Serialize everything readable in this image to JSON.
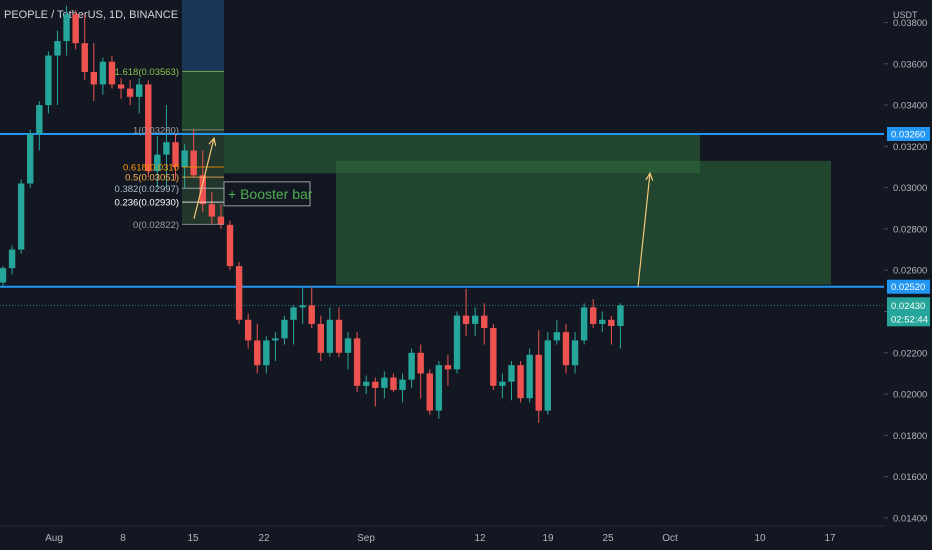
{
  "header": {
    "symbol_line": "PEOPLE / TetherUS, 1D, BINANCE"
  },
  "chart_data": {
    "type": "candlestick",
    "title": "PEOPLE / TetherUS, 1D, BINANCE",
    "currency_label": "USDT",
    "y_ticks": [
      "0.03800",
      "0.03600",
      "0.03400",
      "0.03200",
      "0.03000",
      "0.02800",
      "0.02600",
      "0.02400",
      "0.02200",
      "0.02000",
      "0.01800",
      "0.01600",
      "0.01400"
    ],
    "ylim": [
      0.0139,
      0.0388
    ],
    "x_ticks": [
      "Aug",
      "8",
      "15",
      "22",
      "Sep",
      "12",
      "19",
      "25",
      "Oct",
      "10",
      "17"
    ],
    "grid": false,
    "colors": {
      "background": "#131722",
      "up": "#26a69a",
      "down": "#ef5350",
      "level_line": "#2196f3",
      "zone": "#2e6b3a",
      "projection_arrow": "#f6c77a"
    },
    "horizontal_levels": [
      {
        "label": "0.03260",
        "value": 0.0326
      },
      {
        "label": "0.02520",
        "value": 0.0252
      }
    ],
    "current_price": {
      "value_label": "0.02430",
      "countdown": "02:52:44",
      "value": 0.0243
    },
    "fibonacci": [
      {
        "label": "1.618(0.03563)",
        "value": 0.03563
      },
      {
        "label": "1(0.03280)",
        "value": 0.0328
      },
      {
        "label": "0.618(0.0310",
        "value": 0.031
      },
      {
        "label": "0.5(0.03051)",
        "value": 0.03051
      },
      {
        "label": "0.382(0.02997)",
        "value": 0.02997
      },
      {
        "label": "0.236(0.02930)",
        "value": 0.0293
      },
      {
        "label": "0(0.02822)",
        "value": 0.02822
      }
    ],
    "annotation": "+ Booster bar",
    "candles": [
      {
        "o": 0.0254,
        "h": 0.0262,
        "l": 0.0252,
        "c": 0.0261
      },
      {
        "o": 0.0261,
        "h": 0.0272,
        "l": 0.0258,
        "c": 0.027
      },
      {
        "o": 0.027,
        "h": 0.0304,
        "l": 0.0268,
        "c": 0.0302
      },
      {
        "o": 0.0302,
        "h": 0.0328,
        "l": 0.03,
        "c": 0.0326
      },
      {
        "o": 0.0326,
        "h": 0.0342,
        "l": 0.0318,
        "c": 0.034
      },
      {
        "o": 0.034,
        "h": 0.0366,
        "l": 0.0336,
        "c": 0.0364
      },
      {
        "o": 0.0364,
        "h": 0.0376,
        "l": 0.034,
        "c": 0.0371
      },
      {
        "o": 0.0371,
        "h": 0.0388,
        "l": 0.0364,
        "c": 0.0384
      },
      {
        "o": 0.0384,
        "h": 0.0386,
        "l": 0.0367,
        "c": 0.037
      },
      {
        "o": 0.037,
        "h": 0.0384,
        "l": 0.0352,
        "c": 0.0356
      },
      {
        "o": 0.0356,
        "h": 0.037,
        "l": 0.0342,
        "c": 0.035
      },
      {
        "o": 0.035,
        "h": 0.0363,
        "l": 0.0345,
        "c": 0.0361
      },
      {
        "o": 0.0361,
        "h": 0.0364,
        "l": 0.0348,
        "c": 0.035
      },
      {
        "o": 0.035,
        "h": 0.0353,
        "l": 0.0343,
        "c": 0.0348
      },
      {
        "o": 0.0348,
        "h": 0.0352,
        "l": 0.034,
        "c": 0.0344
      },
      {
        "o": 0.0344,
        "h": 0.0353,
        "l": 0.0336,
        "c": 0.035
      },
      {
        "o": 0.035,
        "h": 0.0352,
        "l": 0.0305,
        "c": 0.0308
      },
      {
        "o": 0.0308,
        "h": 0.0325,
        "l": 0.03,
        "c": 0.0316
      },
      {
        "o": 0.0316,
        "h": 0.034,
        "l": 0.03,
        "c": 0.0322
      },
      {
        "o": 0.0322,
        "h": 0.0326,
        "l": 0.0304,
        "c": 0.031
      },
      {
        "o": 0.031,
        "h": 0.0321,
        "l": 0.03,
        "c": 0.0318
      },
      {
        "o": 0.0318,
        "h": 0.0328,
        "l": 0.0305,
        "c": 0.0306
      },
      {
        "o": 0.0306,
        "h": 0.0318,
        "l": 0.0288,
        "c": 0.0292
      },
      {
        "o": 0.0292,
        "h": 0.0298,
        "l": 0.0282,
        "c": 0.0286
      },
      {
        "o": 0.0286,
        "h": 0.0292,
        "l": 0.028,
        "c": 0.0282
      },
      {
        "o": 0.0282,
        "h": 0.0284,
        "l": 0.026,
        "c": 0.0262
      },
      {
        "o": 0.0262,
        "h": 0.0264,
        "l": 0.0234,
        "c": 0.0236
      },
      {
        "o": 0.0236,
        "h": 0.0239,
        "l": 0.0222,
        "c": 0.0226
      },
      {
        "o": 0.0226,
        "h": 0.0234,
        "l": 0.021,
        "c": 0.0214
      },
      {
        "o": 0.0214,
        "h": 0.0228,
        "l": 0.021,
        "c": 0.0226
      },
      {
        "o": 0.0226,
        "h": 0.023,
        "l": 0.0216,
        "c": 0.0227
      },
      {
        "o": 0.0227,
        "h": 0.0238,
        "l": 0.0224,
        "c": 0.0236
      },
      {
        "o": 0.0236,
        "h": 0.0243,
        "l": 0.0224,
        "c": 0.0242
      },
      {
        "o": 0.0242,
        "h": 0.0252,
        "l": 0.0234,
        "c": 0.0243
      },
      {
        "o": 0.0243,
        "h": 0.0252,
        "l": 0.0232,
        "c": 0.0234
      },
      {
        "o": 0.0234,
        "h": 0.0238,
        "l": 0.0216,
        "c": 0.022
      },
      {
        "o": 0.022,
        "h": 0.0242,
        "l": 0.0218,
        "c": 0.0236
      },
      {
        "o": 0.0236,
        "h": 0.0242,
        "l": 0.0218,
        "c": 0.022
      },
      {
        "o": 0.022,
        "h": 0.023,
        "l": 0.0212,
        "c": 0.0227
      },
      {
        "o": 0.0227,
        "h": 0.023,
        "l": 0.0201,
        "c": 0.0204
      },
      {
        "o": 0.0204,
        "h": 0.0209,
        "l": 0.02,
        "c": 0.0206
      },
      {
        "o": 0.0206,
        "h": 0.0208,
        "l": 0.0194,
        "c": 0.0203
      },
      {
        "o": 0.0203,
        "h": 0.0211,
        "l": 0.0198,
        "c": 0.0208
      },
      {
        "o": 0.0208,
        "h": 0.021,
        "l": 0.0201,
        "c": 0.0202
      },
      {
        "o": 0.0202,
        "h": 0.021,
        "l": 0.0196,
        "c": 0.0207
      },
      {
        "o": 0.0207,
        "h": 0.0222,
        "l": 0.0203,
        "c": 0.022
      },
      {
        "o": 0.022,
        "h": 0.0224,
        "l": 0.0198,
        "c": 0.021
      },
      {
        "o": 0.021,
        "h": 0.0212,
        "l": 0.019,
        "c": 0.0192
      },
      {
        "o": 0.0192,
        "h": 0.0216,
        "l": 0.0188,
        "c": 0.0214
      },
      {
        "o": 0.0214,
        "h": 0.0219,
        "l": 0.0204,
        "c": 0.0212
      },
      {
        "o": 0.0212,
        "h": 0.024,
        "l": 0.021,
        "c": 0.0238
      },
      {
        "o": 0.0238,
        "h": 0.0251,
        "l": 0.0228,
        "c": 0.0234
      },
      {
        "o": 0.0234,
        "h": 0.0242,
        "l": 0.0228,
        "c": 0.0238
      },
      {
        "o": 0.0238,
        "h": 0.0244,
        "l": 0.0224,
        "c": 0.0232
      },
      {
        "o": 0.0232,
        "h": 0.0234,
        "l": 0.0202,
        "c": 0.0204
      },
      {
        "o": 0.0204,
        "h": 0.021,
        "l": 0.0198,
        "c": 0.0206
      },
      {
        "o": 0.0206,
        "h": 0.0216,
        "l": 0.0197,
        "c": 0.0214
      },
      {
        "o": 0.0214,
        "h": 0.0216,
        "l": 0.0196,
        "c": 0.0198
      },
      {
        "o": 0.0198,
        "h": 0.0222,
        "l": 0.0196,
        "c": 0.0219
      },
      {
        "o": 0.0219,
        "h": 0.0231,
        "l": 0.0186,
        "c": 0.0192
      },
      {
        "o": 0.0192,
        "h": 0.023,
        "l": 0.019,
        "c": 0.0226
      },
      {
        "o": 0.0226,
        "h": 0.0236,
        "l": 0.0224,
        "c": 0.023
      },
      {
        "o": 0.023,
        "h": 0.0234,
        "l": 0.021,
        "c": 0.0214
      },
      {
        "o": 0.0214,
        "h": 0.023,
        "l": 0.021,
        "c": 0.0226
      },
      {
        "o": 0.0226,
        "h": 0.0244,
        "l": 0.0224,
        "c": 0.0242
      },
      {
        "o": 0.0242,
        "h": 0.0246,
        "l": 0.0232,
        "c": 0.0234
      },
      {
        "o": 0.0234,
        "h": 0.024,
        "l": 0.023,
        "c": 0.0236
      },
      {
        "o": 0.0236,
        "h": 0.0238,
        "l": 0.0224,
        "c": 0.0233
      },
      {
        "o": 0.0233,
        "h": 0.0244,
        "l": 0.0222,
        "c": 0.0243
      }
    ]
  }
}
